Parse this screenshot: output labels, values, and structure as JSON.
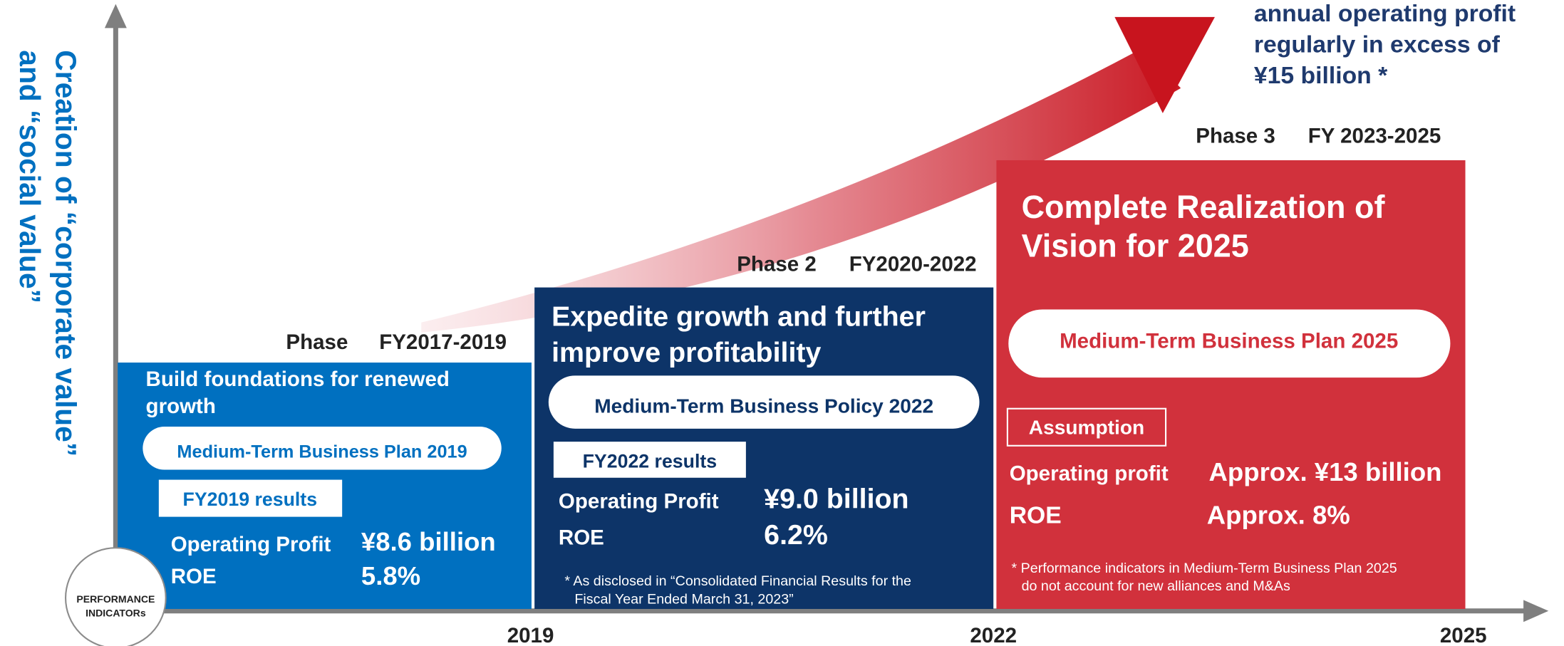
{
  "y_axis_label": [
    "Creation of “corporate value”",
    "and “social value”"
  ],
  "indicator_badge": [
    "PERFORMANCE",
    "INDICATORs"
  ],
  "x_axis_labels": [
    "2019",
    "2022",
    "2025"
  ],
  "goal": [
    "annual operating profit",
    "regularly in excess of",
    "¥15 billion *"
  ],
  "phases": [
    {
      "phase": "Phase",
      "period": "FY2017-2019",
      "title": [
        "Build foundations for renewed",
        "growth"
      ],
      "plan": "Medium-Term Business Plan 2019",
      "results_label": "FY2019 results",
      "rows": [
        [
          "Operating Profit",
          "¥8.6 billion"
        ],
        [
          "ROE",
          "5.8%"
        ]
      ]
    },
    {
      "phase": "Phase 2",
      "period": "FY2020-2022",
      "title": [
        "Expedite growth and further",
        "improve profitability"
      ],
      "plan": "Medium-Term Business Policy 2022",
      "results_label": "FY2022 results",
      "rows": [
        [
          "Operating Profit",
          "¥9.0 billion"
        ],
        [
          "ROE",
          "6.2%"
        ]
      ],
      "note": [
        "* As disclosed in “Consolidated Financial Results for the",
        "Fiscal Year Ended March 31, 2023”"
      ]
    },
    {
      "phase": "Phase 3",
      "period": "FY 2023-2025",
      "title": [
        "Complete Realization of",
        "Vision for 2025"
      ],
      "plan": "Medium-Term Business Plan 2025",
      "results_label": "Assumption",
      "rows": [
        [
          "Operating profit",
          "Approx. ¥13 billion"
        ],
        [
          "ROE",
          "Approx. 8%"
        ]
      ],
      "note": [
        "* Performance indicators in Medium-Term Business Plan 2025",
        "do not account for new alliances and M&As"
      ]
    }
  ]
}
